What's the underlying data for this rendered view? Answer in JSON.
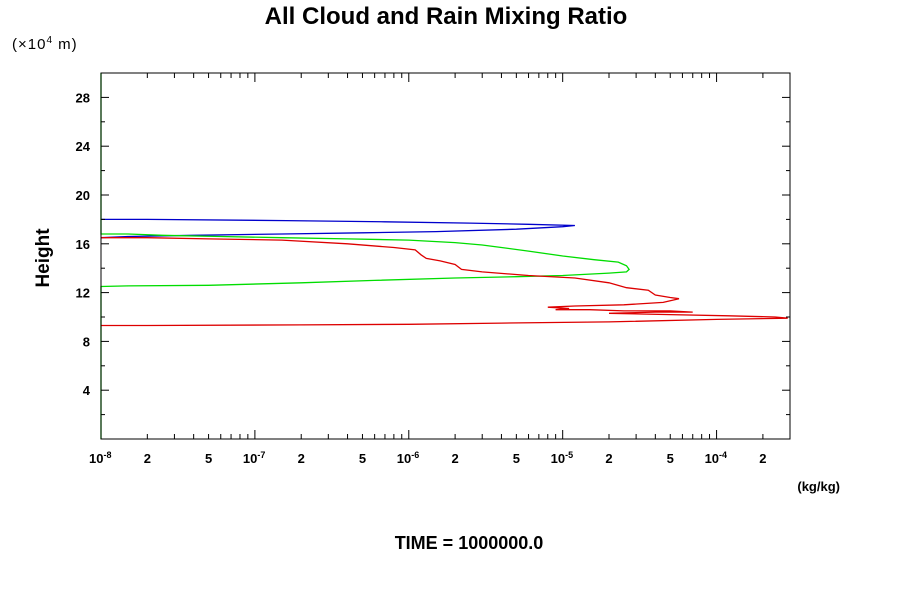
{
  "chart_data": {
    "type": "line",
    "title": "All Cloud and Rain Mixing Ratio",
    "ylabel": "Height",
    "yscale_note": {
      "prefix": "(×10",
      "exponent": "4",
      "suffix": " m)"
    },
    "xunit": "(kg/kg)",
    "footer": "TIME = 1000000.0",
    "xscale": "log",
    "xlim": [
      1e-08,
      0.0003
    ],
    "ylim": [
      0,
      30
    ],
    "yticks": [
      {
        "value": 4,
        "label": "4"
      },
      {
        "value": 8,
        "label": "8"
      },
      {
        "value": 12,
        "label": "12"
      },
      {
        "value": 16,
        "label": "16"
      },
      {
        "value": 20,
        "label": "20"
      },
      {
        "value": 24,
        "label": "24"
      },
      {
        "value": 28,
        "label": "28"
      }
    ],
    "xticks": [
      {
        "value": 1e-08,
        "base": "10",
        "exp": "-8"
      },
      {
        "value": 2e-08,
        "base": "2",
        "exp": ""
      },
      {
        "value": 5e-08,
        "base": "5",
        "exp": ""
      },
      {
        "value": 1e-07,
        "base": "10",
        "exp": "-7"
      },
      {
        "value": 2e-07,
        "base": "2",
        "exp": ""
      },
      {
        "value": 5e-07,
        "base": "5",
        "exp": ""
      },
      {
        "value": 1e-06,
        "base": "10",
        "exp": "-6"
      },
      {
        "value": 2e-06,
        "base": "2",
        "exp": ""
      },
      {
        "value": 5e-06,
        "base": "5",
        "exp": ""
      },
      {
        "value": 1e-05,
        "base": "10",
        "exp": "-5"
      },
      {
        "value": 2e-05,
        "base": "2",
        "exp": ""
      },
      {
        "value": 5e-05,
        "base": "5",
        "exp": ""
      },
      {
        "value": 0.0001,
        "base": "10",
        "exp": "-4"
      },
      {
        "value": 0.0002,
        "base": "2",
        "exp": ""
      }
    ],
    "grid": false,
    "series": [
      {
        "color": "#0000cc",
        "points": [
          [
            1e-08,
            18.0
          ],
          [
            2e-08,
            18.0
          ],
          [
            1.6e-07,
            17.9
          ],
          [
            7e-07,
            17.8
          ],
          [
            2.5e-06,
            17.7
          ],
          [
            6e-06,
            17.6
          ],
          [
            1.2e-05,
            17.5
          ],
          [
            1e-05,
            17.4
          ],
          [
            5e-06,
            17.2
          ],
          [
            1.5e-06,
            17.0
          ],
          [
            5e-07,
            16.9
          ],
          [
            1.5e-07,
            16.8
          ],
          [
            4e-08,
            16.7
          ],
          [
            1.5e-08,
            16.6
          ],
          [
            1e-08,
            16.5
          ]
        ]
      },
      {
        "color": "#00dd00",
        "points": [
          [
            1e-08,
            30
          ],
          [
            1e-08,
            16.8
          ],
          [
            1.5e-08,
            16.8
          ],
          [
            2.5e-08,
            16.7
          ],
          [
            6e-08,
            16.6
          ],
          [
            1.5e-07,
            16.5
          ],
          [
            4e-07,
            16.4
          ],
          [
            1e-06,
            16.3
          ],
          [
            2e-06,
            16.1
          ],
          [
            3e-06,
            15.9
          ],
          [
            4e-06,
            15.7
          ],
          [
            6e-06,
            15.4
          ],
          [
            1e-05,
            15.0
          ],
          [
            1.6e-05,
            14.7
          ],
          [
            2.3e-05,
            14.5
          ],
          [
            2.6e-05,
            14.2
          ],
          [
            2.7e-05,
            13.9
          ],
          [
            2.6e-05,
            13.7
          ],
          [
            2e-05,
            13.6
          ],
          [
            1e-05,
            13.4
          ],
          [
            5e-06,
            13.3
          ],
          [
            2e-06,
            13.2
          ],
          [
            6e-07,
            13.0
          ],
          [
            2e-07,
            12.8
          ],
          [
            5e-08,
            12.6
          ],
          [
            1.5e-08,
            12.55
          ],
          [
            1e-08,
            12.5
          ],
          [
            1e-08,
            0
          ]
        ]
      },
      {
        "color": "#dd0000",
        "points": [
          [
            1e-08,
            16.5
          ],
          [
            2e-08,
            16.5
          ],
          [
            5e-08,
            16.4
          ],
          [
            1.5e-07,
            16.3
          ],
          [
            4e-07,
            16.0
          ],
          [
            8e-07,
            15.7
          ],
          [
            1.1e-06,
            15.5
          ],
          [
            1.2e-06,
            15.1
          ],
          [
            1.3e-06,
            14.8
          ],
          [
            1.6e-06,
            14.6
          ],
          [
            2e-06,
            14.3
          ],
          [
            2.2e-06,
            13.9
          ],
          [
            3e-06,
            13.7
          ],
          [
            6e-06,
            13.4
          ],
          [
            1.2e-05,
            13.2
          ],
          [
            2e-05,
            12.8
          ],
          [
            2.6e-05,
            12.4
          ],
          [
            3.6e-05,
            12.2
          ],
          [
            4e-05,
            11.8
          ],
          [
            5e-05,
            11.6
          ],
          [
            5.7e-05,
            11.5
          ],
          [
            4.5e-05,
            11.2
          ],
          [
            2.5e-05,
            11.0
          ],
          [
            1.2e-05,
            10.9
          ],
          [
            8e-06,
            10.8
          ],
          [
            1.1e-05,
            10.7
          ],
          [
            9e-06,
            10.6
          ],
          [
            1.5e-05,
            10.6
          ],
          [
            2.5e-05,
            10.5
          ],
          [
            5e-05,
            10.5
          ],
          [
            7e-05,
            10.4
          ],
          [
            4e-05,
            10.4
          ],
          [
            2e-05,
            10.3
          ],
          [
            5e-05,
            10.2
          ],
          [
            0.00012,
            10.1
          ],
          [
            0.00024,
            10.0
          ],
          [
            0.00029,
            9.9
          ],
          [
            0.0001,
            9.8
          ],
          [
            2e-05,
            9.6
          ],
          [
            4e-06,
            9.5
          ],
          [
            1e-06,
            9.4
          ],
          [
            2e-07,
            9.35
          ],
          [
            2e-08,
            9.3
          ],
          [
            1e-08,
            9.3
          ]
        ]
      }
    ]
  }
}
